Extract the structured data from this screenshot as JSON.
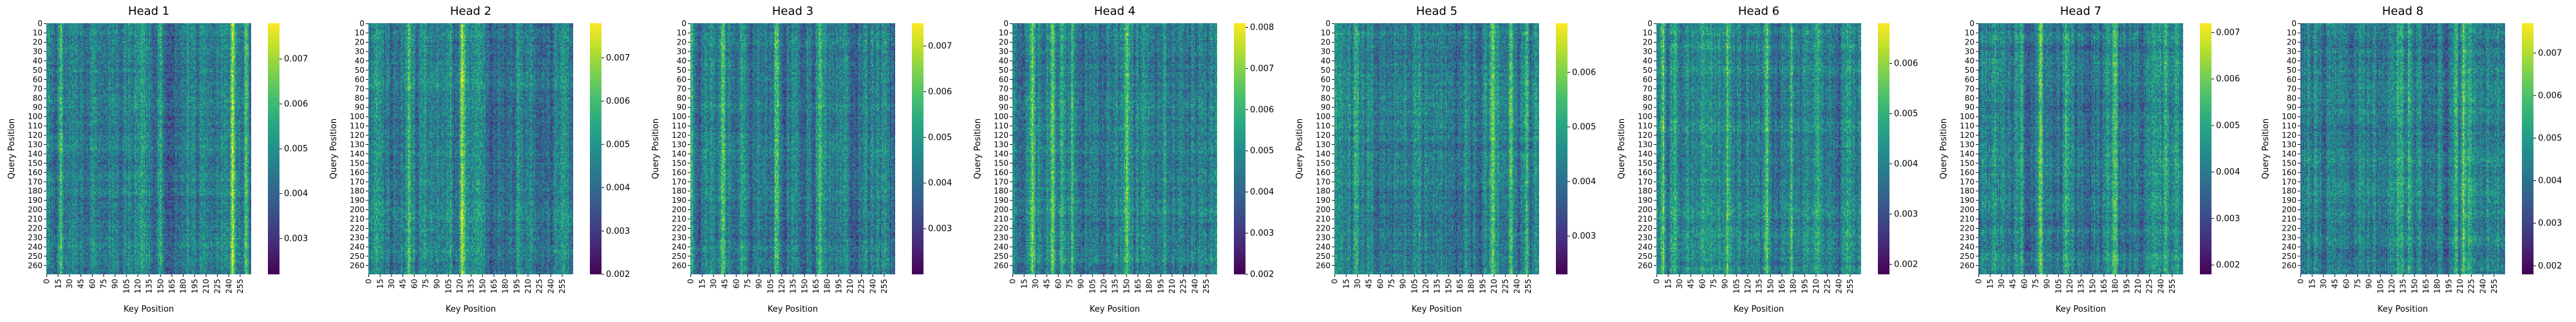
{
  "chart_data": {
    "type": "heatmap",
    "layout": "1x8 small multiples",
    "shared": {
      "xlabel": "Key Position",
      "ylabel": "Query Position",
      "size": 270,
      "x_ticks": [
        0,
        15,
        30,
        45,
        60,
        75,
        90,
        105,
        120,
        135,
        150,
        165,
        180,
        195,
        210,
        225,
        240,
        255
      ],
      "y_ticks": [
        0,
        10,
        20,
        30,
        40,
        50,
        60,
        70,
        80,
        90,
        100,
        110,
        120,
        130,
        140,
        150,
        160,
        170,
        180,
        190,
        200,
        210,
        220,
        230,
        240,
        250,
        260
      ],
      "colormap": "viridis",
      "colorbar": true
    },
    "panels": [
      {
        "title": "Head 1",
        "vmin": 0.0022,
        "vmax": 0.0078,
        "cbar_ticks": [
          0.003,
          0.004,
          0.005,
          0.006,
          0.007
        ]
      },
      {
        "title": "Head 2",
        "vmin": 0.002,
        "vmax": 0.0078,
        "cbar_ticks": [
          0.002,
          0.003,
          0.004,
          0.005,
          0.006,
          0.007
        ]
      },
      {
        "title": "Head 3",
        "vmin": 0.002,
        "vmax": 0.0075,
        "cbar_ticks": [
          0.003,
          0.004,
          0.005,
          0.006,
          0.007
        ]
      },
      {
        "title": "Head 4",
        "vmin": 0.002,
        "vmax": 0.0081,
        "cbar_ticks": [
          0.002,
          0.003,
          0.004,
          0.005,
          0.006,
          0.007,
          0.008
        ]
      },
      {
        "title": "Head 5",
        "vmin": 0.0023,
        "vmax": 0.0069,
        "cbar_ticks": [
          0.003,
          0.004,
          0.005,
          0.006
        ]
      },
      {
        "title": "Head 6",
        "vmin": 0.0018,
        "vmax": 0.0068,
        "cbar_ticks": [
          0.002,
          0.003,
          0.004,
          0.005,
          0.006
        ]
      },
      {
        "title": "Head 7",
        "vmin": 0.0018,
        "vmax": 0.0072,
        "cbar_ticks": [
          0.002,
          0.003,
          0.004,
          0.005,
          0.006,
          0.007
        ]
      },
      {
        "title": "Head 8",
        "vmin": 0.0018,
        "vmax": 0.0077,
        "cbar_ticks": [
          0.002,
          0.003,
          0.004,
          0.005,
          0.006,
          0.007
        ]
      }
    ]
  }
}
